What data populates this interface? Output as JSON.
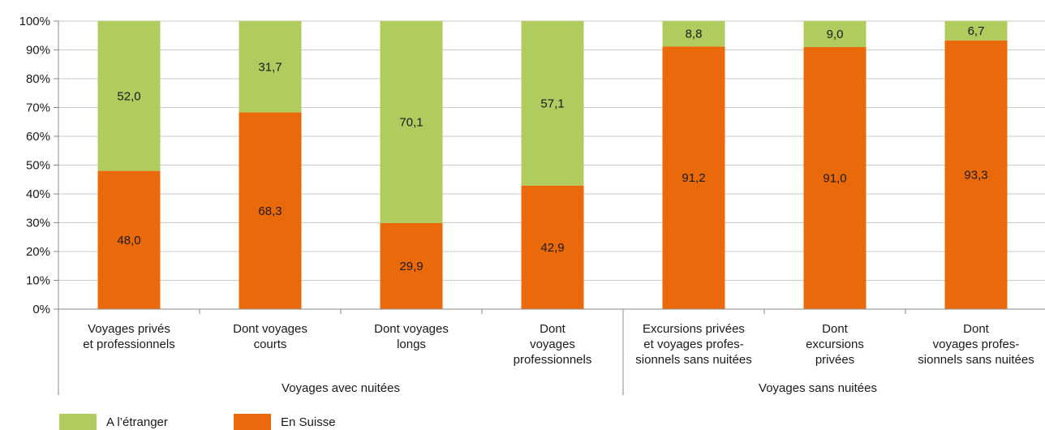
{
  "chart_data": {
    "type": "bar",
    "stacked": true,
    "categories": [
      [
        "Voyages privés",
        "et professionnels"
      ],
      [
        "Dont voyages",
        "courts"
      ],
      [
        "Dont voyages",
        "longs"
      ],
      [
        "Dont",
        "voyages",
        "professionnels"
      ],
      [
        "Excursions privées",
        "et voyages profes-",
        "sionnels sans nuitées"
      ],
      [
        "Dont",
        "excursions",
        "privées"
      ],
      [
        "Dont",
        "voyages profes-",
        "sionnels sans nuitées"
      ]
    ],
    "groups": [
      {
        "label": "Voyages avec nuitées",
        "categories": [
          0,
          1,
          2,
          3
        ]
      },
      {
        "label": "Voyages sans nuitées",
        "categories": [
          4,
          5,
          6
        ]
      }
    ],
    "series": [
      {
        "name": "En Suisse",
        "color": "#ea690b",
        "values": [
          48.0,
          68.3,
          29.9,
          42.9,
          91.2,
          91.0,
          93.3
        ],
        "labels": [
          "48,0",
          "68,3",
          "29,9",
          "42,9",
          "91,2",
          "91,0",
          "93,3"
        ]
      },
      {
        "name": "A l’étranger",
        "color": "#b1cc5e",
        "values": [
          52.0,
          31.7,
          70.1,
          57.1,
          8.8,
          9.0,
          6.7
        ],
        "labels": [
          "52,0",
          "31,7",
          "70,1",
          "57,1",
          "8,8",
          "9,0",
          "6,7"
        ]
      }
    ],
    "y_ticks": [
      "0%",
      "10%",
      "20%",
      "30%",
      "40%",
      "50%",
      "60%",
      "70%",
      "80%",
      "90%",
      "100%"
    ],
    "ylim": [
      0,
      100
    ],
    "grid": true,
    "legend_position": "bottom-left"
  }
}
